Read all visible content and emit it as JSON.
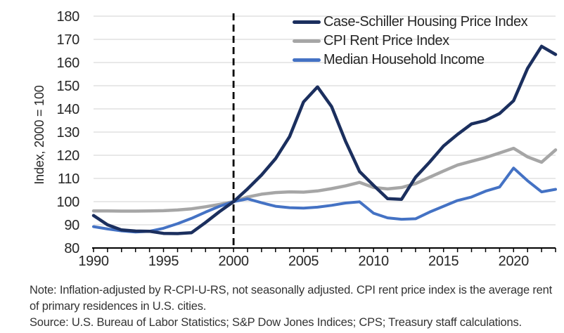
{
  "chart_data": {
    "type": "line",
    "y_axis_title": "Index, 2000 = 100",
    "ylim": [
      80,
      180
    ],
    "yticks": [
      80,
      90,
      100,
      110,
      120,
      130,
      140,
      150,
      160,
      170,
      180
    ],
    "xlim": [
      1990,
      2023
    ],
    "xticks": [
      1990,
      1995,
      2000,
      2005,
      2010,
      2015,
      2020
    ],
    "grid": "horizontal",
    "legend_position": "top-right-inside",
    "reference_line": {
      "x": 2000,
      "style": "dashed",
      "color": "#000000"
    },
    "x": [
      1990,
      1991,
      1992,
      1993,
      1994,
      1995,
      1996,
      1997,
      1998,
      1999,
      2000,
      2001,
      2002,
      2003,
      2004,
      2005,
      2006,
      2007,
      2008,
      2009,
      2010,
      2011,
      2012,
      2013,
      2014,
      2015,
      2016,
      2017,
      2018,
      2019,
      2020,
      2021,
      2022,
      2023
    ],
    "series": [
      {
        "name": "Case-Schiller Housing Price Index",
        "color": "#1B2F5E",
        "stroke_width": 4.5,
        "values": [
          94,
          90,
          87.8,
          87.3,
          87.2,
          86.3,
          86.2,
          86.6,
          91,
          95.7,
          100,
          105.5,
          111.5,
          118.5,
          128,
          143,
          149.5,
          141,
          126,
          113,
          107,
          101.3,
          101,
          110.5,
          117,
          124,
          129,
          133.5,
          135,
          138,
          143.5,
          157.5,
          167,
          163.5
        ]
      },
      {
        "name": "CPI Rent Price Index",
        "color": "#A6A6A6",
        "stroke_width": 4.5,
        "values": [
          96,
          96,
          95.9,
          95.9,
          96,
          96.1,
          96.4,
          96.9,
          97.8,
          98.8,
          100,
          102,
          103.2,
          103.9,
          104.2,
          104.1,
          104.6,
          105.6,
          106.8,
          108.3,
          106.1,
          105.5,
          106.1,
          107.8,
          110.5,
          113.2,
          115.8,
          117.4,
          119,
          121,
          123,
          119.3,
          117,
          122.3
        ]
      },
      {
        "name": "Median Household Income",
        "color": "#4472C4",
        "stroke_width": 4,
        "values": [
          89.2,
          88.2,
          87.4,
          86.9,
          87.2,
          88.5,
          90.5,
          92.8,
          95.5,
          98,
          100,
          101.2,
          99.5,
          98,
          97.4,
          97.2,
          97.6,
          98.4,
          99.4,
          99.9,
          95,
          93,
          92.4,
          92.6,
          95.5,
          98,
          100.5,
          102,
          104.5,
          106.3,
          114.5,
          109,
          104.2,
          105.3
        ]
      }
    ]
  },
  "footer": {
    "note": "Note: Inflation-adjusted by R-CPI-U-RS, not seasonally adjusted. CPI rent price index is the average rent of primary residences in U.S. cities.",
    "source": "Source: U.S. Bureau of Labor Statistics; S&P Dow Jones Indices; CPS; Treasury staff calculations."
  },
  "colors": {
    "gridline": "#D9D9D9",
    "axis": "#000000",
    "tick_text": "#262626",
    "background": "#FFFFFF"
  }
}
